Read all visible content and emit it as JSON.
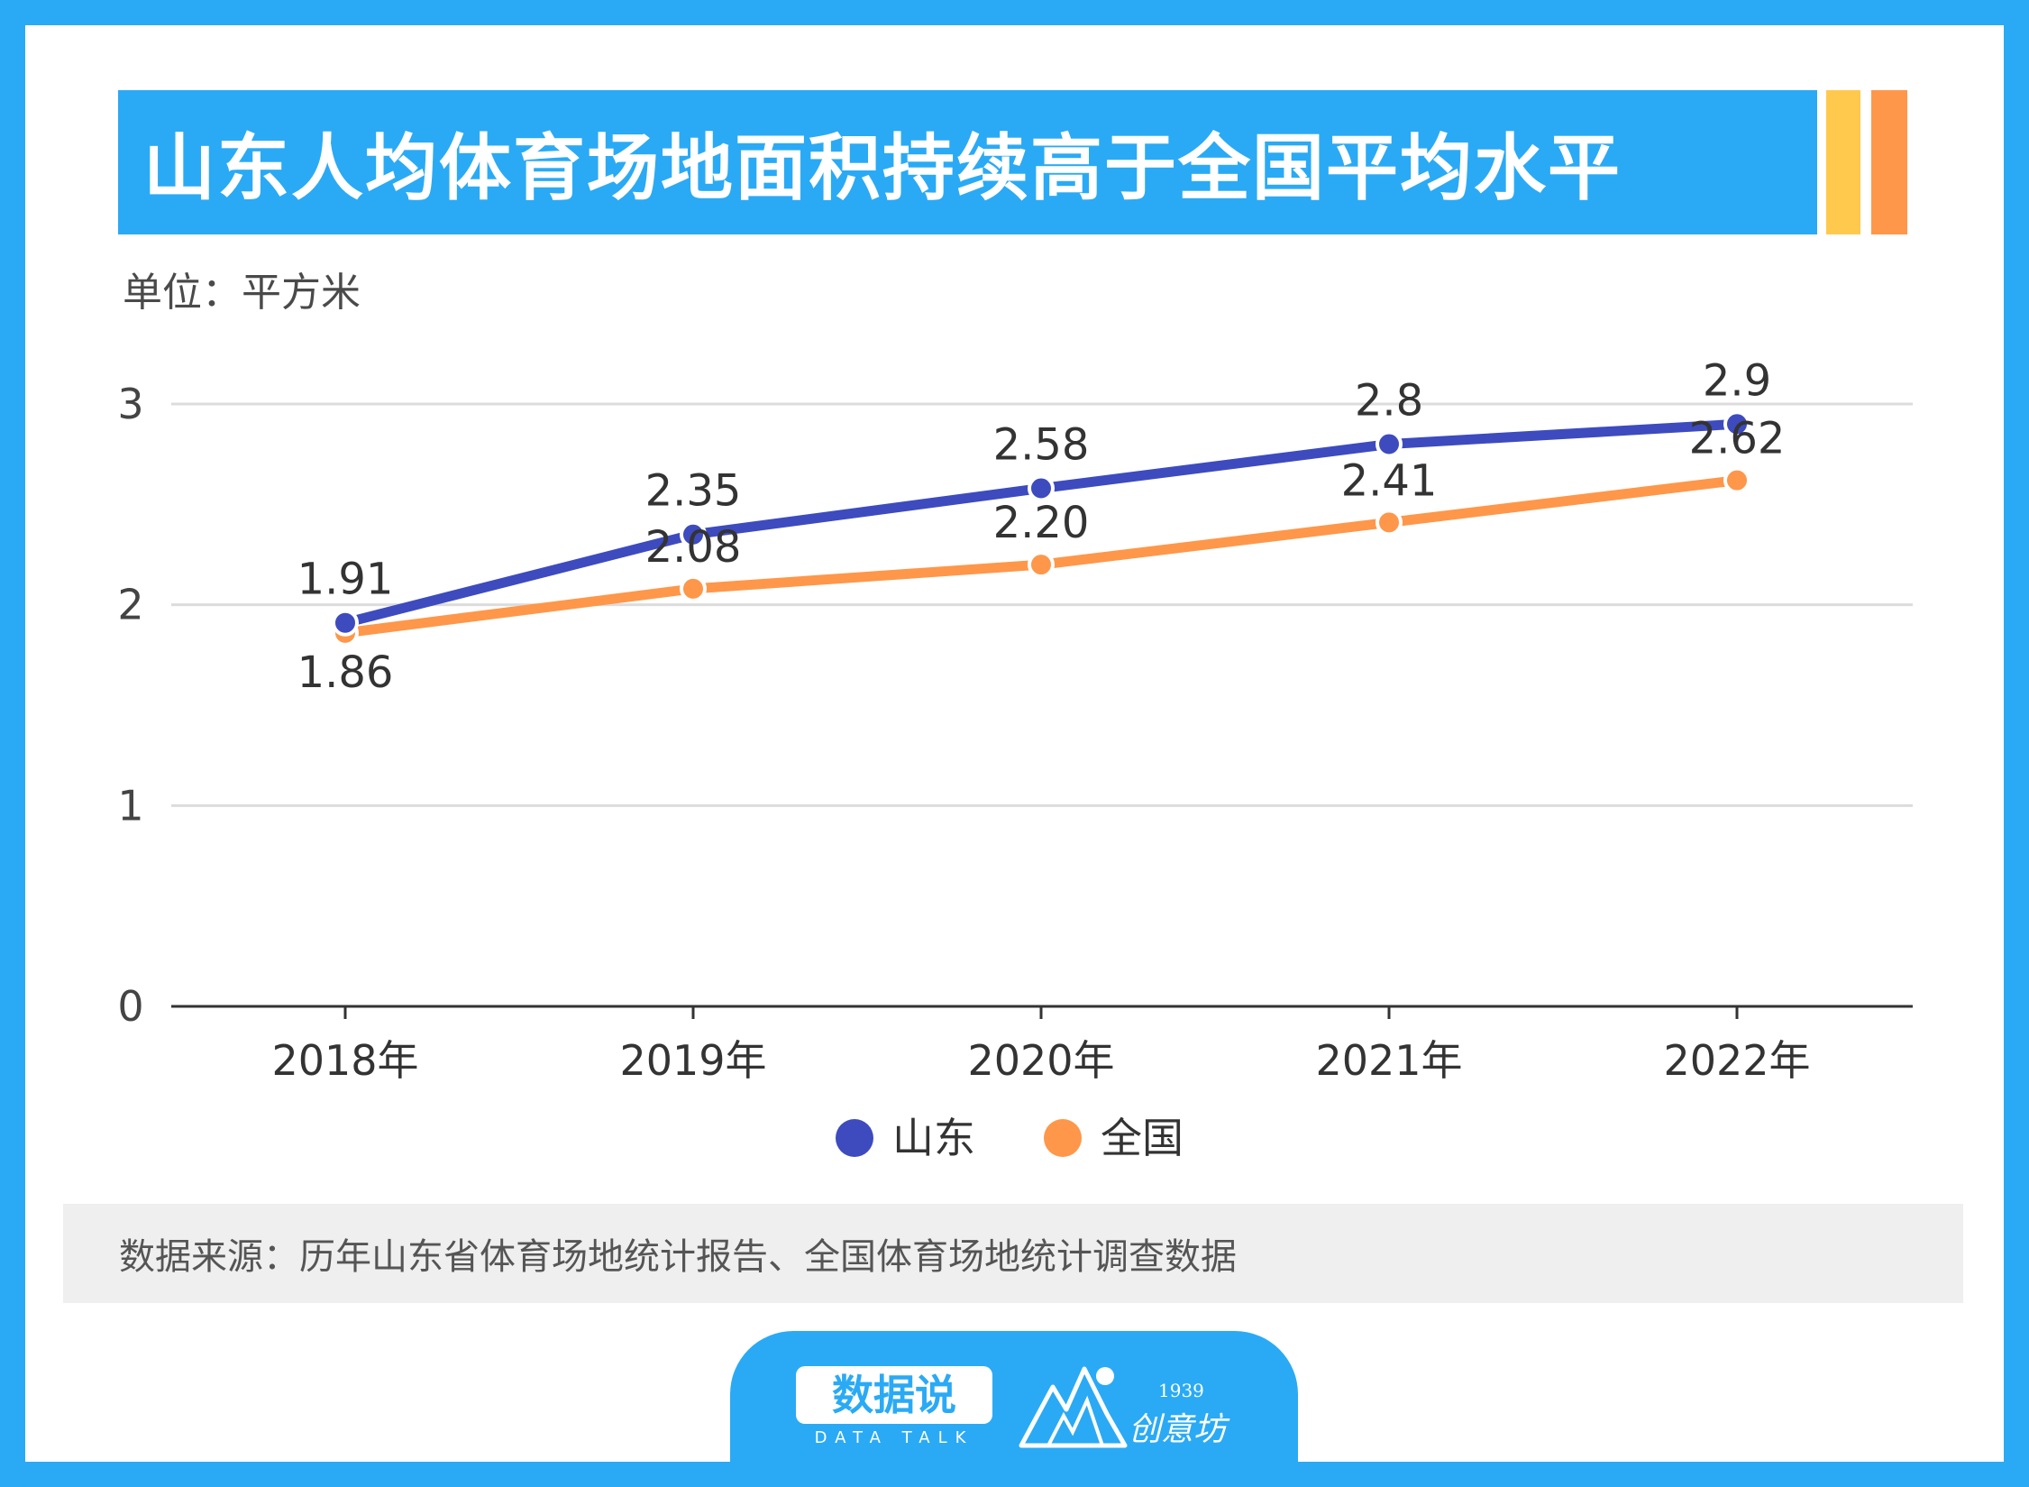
{
  "title": "山东人均体育场地面积持续高于全国平均水平",
  "unit": "单位：平方米",
  "source": "数据来源：历年山东省体育场地统计报告、全国体育场地统计调查数据",
  "brand": {
    "name": "数据说",
    "sub": "DATA TALK",
    "partner_year": "1939",
    "partner_name": "创意坊"
  },
  "colors": {
    "background": "#2aaaf5",
    "shandong": "#3d4bbf",
    "national": "#fe974a",
    "accent_yellow": "#ffc94e",
    "accent_orange": "#fe974a"
  },
  "chart_data": {
    "type": "line",
    "categories": [
      "2018年",
      "2019年",
      "2020年",
      "2021年",
      "2022年"
    ],
    "series": [
      {
        "name": "山东",
        "values": [
          1.91,
          2.35,
          2.58,
          2.8,
          2.9
        ],
        "labels": [
          "1.91",
          "2.35",
          "2.58",
          "2.8",
          "2.9"
        ],
        "color": "#3d4bbf"
      },
      {
        "name": "全国",
        "values": [
          1.86,
          2.08,
          2.2,
          2.41,
          2.62
        ],
        "labels": [
          "1.86",
          "2.08",
          "2.20",
          "2.41",
          "2.62"
        ],
        "color": "#fe974a"
      }
    ],
    "ylim": [
      0,
      3
    ],
    "yticks": [
      "0",
      "1",
      "2",
      "3"
    ],
    "grid": true,
    "legend": "bottom-center"
  }
}
